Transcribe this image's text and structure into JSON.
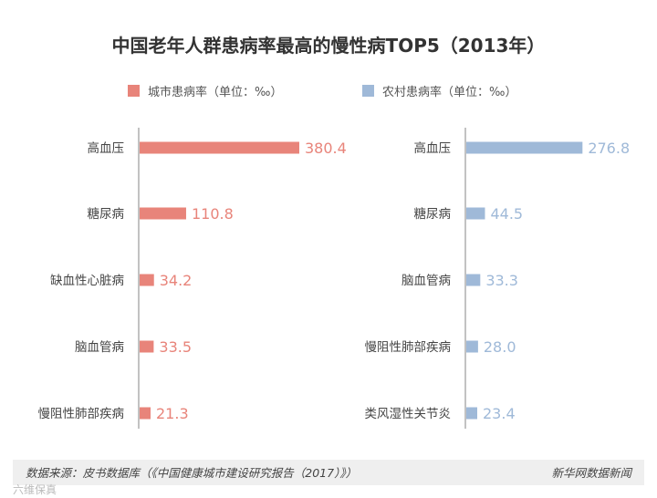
{
  "chart_data": {
    "type": "bar",
    "title": "中国老年人群患病率最高的慢性病TOP5（2013年）",
    "panels": [
      {
        "legend": "城市患病率（单位：‰）",
        "color": "#e8847a",
        "categories": [
          "高血压",
          "糖尿病",
          "缺血性心脏病",
          "脑血管病",
          "慢阻性肺部疾病"
        ],
        "values": [
          380.4,
          110.8,
          34.2,
          33.5,
          21.3
        ],
        "value_labels": [
          "380.4",
          "110.8",
          "34.2",
          "33.5",
          "21.3"
        ]
      },
      {
        "legend": "农村患病率（单位：‰）",
        "color": "#9fb9d8",
        "categories": [
          "高血压",
          "糖尿病",
          "脑血管病",
          "慢阻性肺部疾病",
          "类风湿性关节炎"
        ],
        "values": [
          276.8,
          44.5,
          33.3,
          28.0,
          23.4
        ],
        "value_labels": [
          "276.8",
          "44.5",
          "33.3",
          "28.0",
          "23.4"
        ]
      }
    ],
    "grid": false,
    "legend_position": "top"
  },
  "footer": {
    "source": "数据来源：皮书数据库（《中国健康城市建设研究报告（2017）》）",
    "credit": "新华网数据新闻"
  },
  "watermark": "六维保真"
}
